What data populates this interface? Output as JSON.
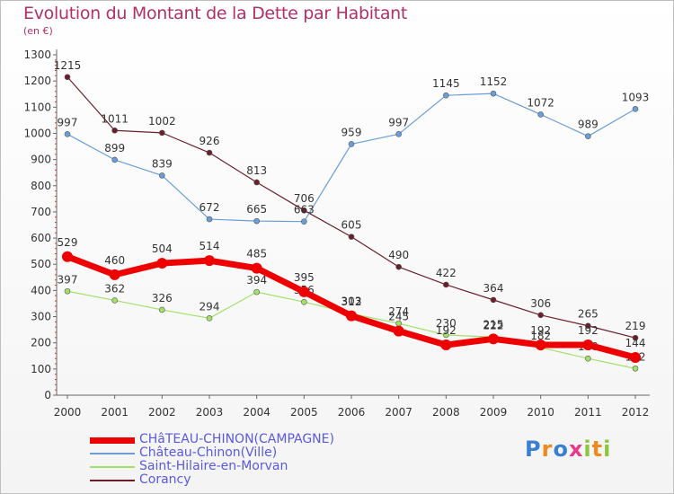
{
  "header": {
    "title": "Evolution du Montant de la Dette par Habitant",
    "subtitle": "(en €)"
  },
  "brand": {
    "text": "Proxiti",
    "colors": [
      "#3a7fd0",
      "#f08a1a",
      "#3a7fd0",
      "#e83a8a",
      "#8cc63f",
      "#f08a1a",
      "#8cc63f"
    ]
  },
  "chart_data": {
    "type": "line",
    "x": [
      "2000",
      "2001",
      "2002",
      "2003",
      "2004",
      "2005",
      "2006",
      "2007",
      "2008",
      "2009",
      "2010",
      "2011",
      "2012"
    ],
    "ylim": [
      0,
      1300
    ],
    "yticks": [
      0,
      100,
      200,
      300,
      400,
      500,
      600,
      700,
      800,
      900,
      1000,
      1100,
      1200,
      1300
    ],
    "grid": false,
    "legend_position": "bottom-left",
    "series": [
      {
        "name": "Corancy",
        "color": "#6b1f2a",
        "width": 1.2,
        "marker_r": 3,
        "values": [
          1215,
          1011,
          1002,
          926,
          813,
          706,
          605,
          490,
          422,
          364,
          306,
          265,
          219
        ]
      },
      {
        "name": "Château-Chinon(Ville)",
        "color": "#6b9ed8",
        "width": 1.2,
        "marker_r": 3,
        "values": [
          997,
          899,
          839,
          672,
          665,
          663,
          959,
          997,
          1145,
          1152,
          1072,
          989,
          1093
        ]
      },
      {
        "name": "Saint-Hilaire-en-Morvan",
        "color": "#a3e06a",
        "width": 1.2,
        "marker_r": 3,
        "values": [
          397,
          362,
          326,
          294,
          394,
          356,
          312,
          274,
          230,
          222,
          182,
          140,
          102
        ]
      },
      {
        "name": "CHâTEAU-CHINON(CAMPAGNE)",
        "color": "#ee0000",
        "width": 7,
        "marker_r": 6,
        "values": [
          529,
          460,
          504,
          514,
          485,
          395,
          303,
          245,
          192,
          215,
          192,
          192,
          144
        ]
      }
    ]
  },
  "legend": [
    {
      "name": "CHâTEAU-CHINON(CAMPAGNE)",
      "color": "#ee0000",
      "thickness": 7
    },
    {
      "name": "Château-Chinon(Ville)",
      "color": "#6b9ed8",
      "thickness": 2
    },
    {
      "name": "Saint-Hilaire-en-Morvan",
      "color": "#a3e06a",
      "thickness": 2
    },
    {
      "name": "Corancy",
      "color": "#6b1f2a",
      "thickness": 2
    }
  ]
}
